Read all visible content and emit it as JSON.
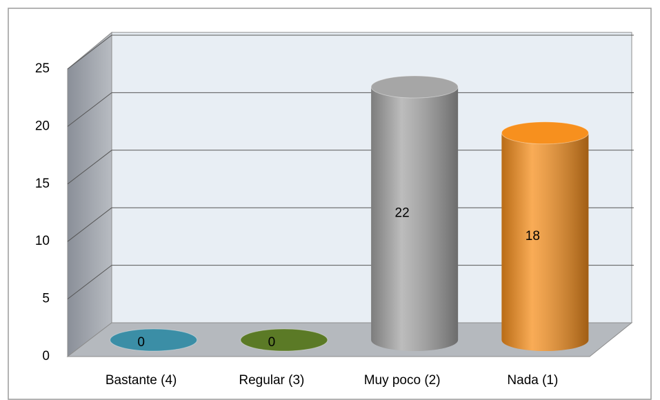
{
  "chart_data": {
    "type": "bar3d",
    "categories": [
      "Bastante (4)",
      "Regular (3)",
      "Muy poco (2)",
      "Nada (1)"
    ],
    "values": [
      0,
      0,
      22,
      18
    ],
    "colors": [
      "#3b8ea6",
      "#5b7a26",
      "#a6a6a6",
      "#f7901e"
    ],
    "ylim": [
      0,
      25
    ],
    "yticks": [
      0,
      5,
      10,
      15,
      20,
      25
    ],
    "grid": true
  }
}
